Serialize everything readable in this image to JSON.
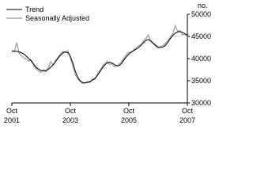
{
  "chart_data": {
    "type": "line",
    "y_axis_label": "no.",
    "categories": [
      "Oct 2001",
      null,
      null,
      null,
      null,
      null,
      null,
      null,
      null,
      null,
      null,
      null,
      null,
      null,
      null,
      null,
      null,
      null,
      null,
      null,
      null,
      null,
      null,
      null,
      "Oct 2003",
      null,
      null,
      null,
      null,
      null,
      null,
      null,
      null,
      null,
      null,
      null,
      null,
      null,
      null,
      null,
      null,
      null,
      null,
      null,
      null,
      null,
      null,
      null,
      "Oct 2005",
      null,
      null,
      null,
      null,
      null,
      null,
      null,
      null,
      null,
      null,
      null,
      null,
      null,
      null,
      null,
      null,
      null,
      null,
      null,
      null,
      null,
      null,
      null,
      "Oct 2007"
    ],
    "series": [
      {
        "name": "Trend",
        "color": "#000000",
        "values": [
          41700,
          41700,
          41650,
          41500,
          41300,
          41000,
          40500,
          40000,
          39400,
          38700,
          38000,
          37600,
          37300,
          37200,
          37300,
          37600,
          38100,
          38700,
          39400,
          40100,
          40800,
          41300,
          41500,
          41300,
          40500,
          39000,
          37200,
          35800,
          35000,
          34600,
          34500,
          34600,
          34800,
          35100,
          35500,
          36100,
          36900,
          37800,
          38500,
          39000,
          39200,
          39000,
          38700,
          38400,
          38400,
          38900,
          39700,
          40400,
          41000,
          41500,
          41800,
          42100,
          42500,
          43000,
          43600,
          44100,
          44300,
          44000,
          43500,
          43000,
          42600,
          42500,
          42600,
          43000,
          43700,
          44500,
          45200,
          45700,
          46000,
          46100,
          45900,
          45600,
          45300
        ]
      },
      {
        "name": "Seasonally Adjusted",
        "color": "#a6a6a6",
        "values": [
          41800,
          41500,
          43600,
          41200,
          40600,
          40200,
          39800,
          39500,
          39700,
          38400,
          37600,
          37200,
          36900,
          37500,
          37000,
          38000,
          39300,
          38500,
          39600,
          40300,
          41100,
          41700,
          41400,
          41800,
          40100,
          38500,
          36400,
          35500,
          34900,
          34400,
          34500,
          34900,
          34600,
          35400,
          35300,
          36400,
          37200,
          38000,
          38900,
          39400,
          38700,
          38800,
          38200,
          38300,
          38800,
          39300,
          40100,
          40900,
          41400,
          41300,
          42000,
          42400,
          42900,
          43200,
          44000,
          44600,
          45300,
          43800,
          43300,
          42800,
          42300,
          42800,
          42900,
          43500,
          44100,
          44900,
          45600,
          47400,
          46200,
          46300,
          45400,
          45500,
          44900
        ]
      }
    ],
    "ylim": [
      30000,
      50000
    ],
    "yticks": [
      30000,
      35000,
      40000,
      45000,
      50000
    ],
    "grid": false,
    "legend": "top-left"
  }
}
